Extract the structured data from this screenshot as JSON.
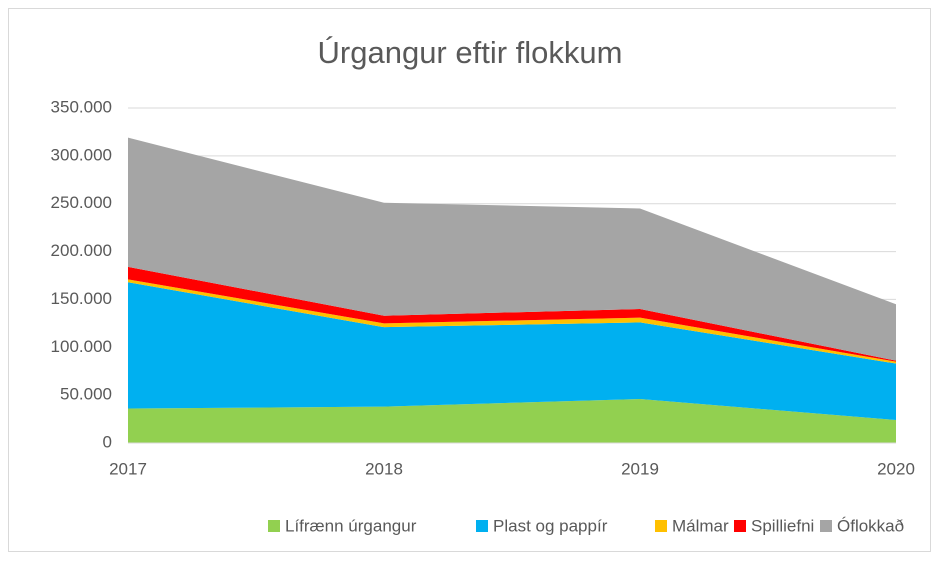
{
  "chart_data": {
    "type": "stacked_area",
    "title": "Úrgangur eftir flokkum",
    "x": [
      2017,
      2018,
      2019,
      2020
    ],
    "xlim": [
      2017,
      2020
    ],
    "xticks": [
      2017,
      2018,
      2019,
      2020
    ],
    "ylim": [
      0,
      350000
    ],
    "yticks": [
      0,
      {
        "value": 50000,
        "label": "50.000"
      },
      {
        "value": 100000,
        "label": "100.000"
      },
      {
        "value": 150000,
        "label": "150.000"
      },
      {
        "value": 200000,
        "label": "200.000"
      },
      {
        "value": 250000,
        "label": "250.000"
      },
      {
        "value": 300000,
        "label": "300.000"
      },
      {
        "value": 350000,
        "label": "350.000"
      }
    ],
    "grid": true,
    "legend": "bottom",
    "series": [
      {
        "name": "Lífrænn úrgangur",
        "color": "#92d050",
        "values": [
          36000,
          38000,
          46000,
          24000
        ]
      },
      {
        "name": "Plast og pappír",
        "color": "#00b0f0",
        "values": [
          132000,
          83000,
          80000,
          59000
        ]
      },
      {
        "name": "Málmar",
        "color": "#ffc000",
        "values": [
          3000,
          4000,
          5000,
          2000
        ]
      },
      {
        "name": "Spilliefni",
        "color": "#ff0000",
        "values": [
          13000,
          8000,
          9000,
          1000
        ]
      },
      {
        "name": "Óflokkað",
        "color": "#a5a5a5",
        "values": [
          135000,
          118000,
          105000,
          59000
        ]
      }
    ]
  }
}
